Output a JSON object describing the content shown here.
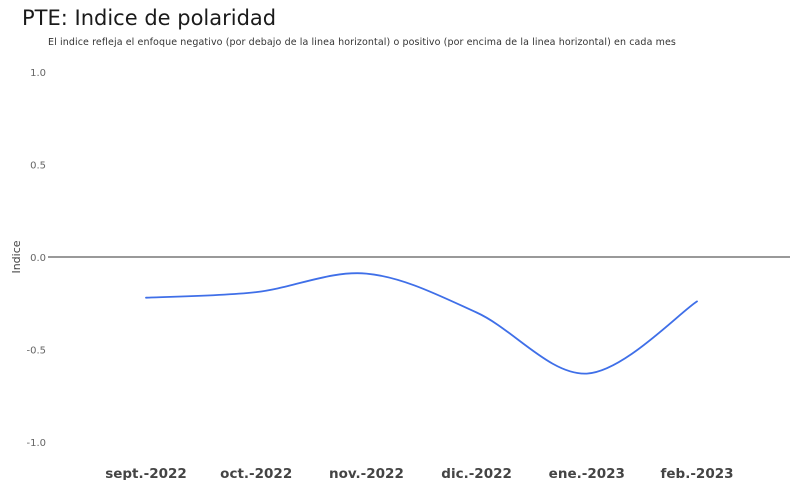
{
  "chart_data": {
    "type": "line",
    "title": "PTE: Indice de polaridad",
    "subtitle": "El indice refleja el enfoque negativo (por debajo de la linea horizontal) o positivo (por encima de la linea horizontal) en cada mes",
    "xlabel": "",
    "ylabel": "Indice",
    "categories": [
      "sept.-2022",
      "oct.-2022",
      "nov.-2022",
      "dic.-2022",
      "ene.-2023",
      "feb.-2023"
    ],
    "x": [
      "sept.-2022",
      "oct.-2022",
      "nov.-2022",
      "dic.-2022",
      "ene.-2023",
      "feb.-2023"
    ],
    "series": [
      {
        "values": [
          -0.22,
          -0.19,
          -0.09,
          -0.3,
          -0.63,
          -0.24
        ]
      }
    ],
    "ylim": [
      -1.0,
      1.0
    ],
    "yticks": [
      "1.0",
      "0.5",
      "0.0",
      "-0.5",
      "-1.0"
    ],
    "reference_line": 0.0,
    "grid": false,
    "colors": {
      "line": "#3f6fe8",
      "reference": "#333333"
    }
  }
}
